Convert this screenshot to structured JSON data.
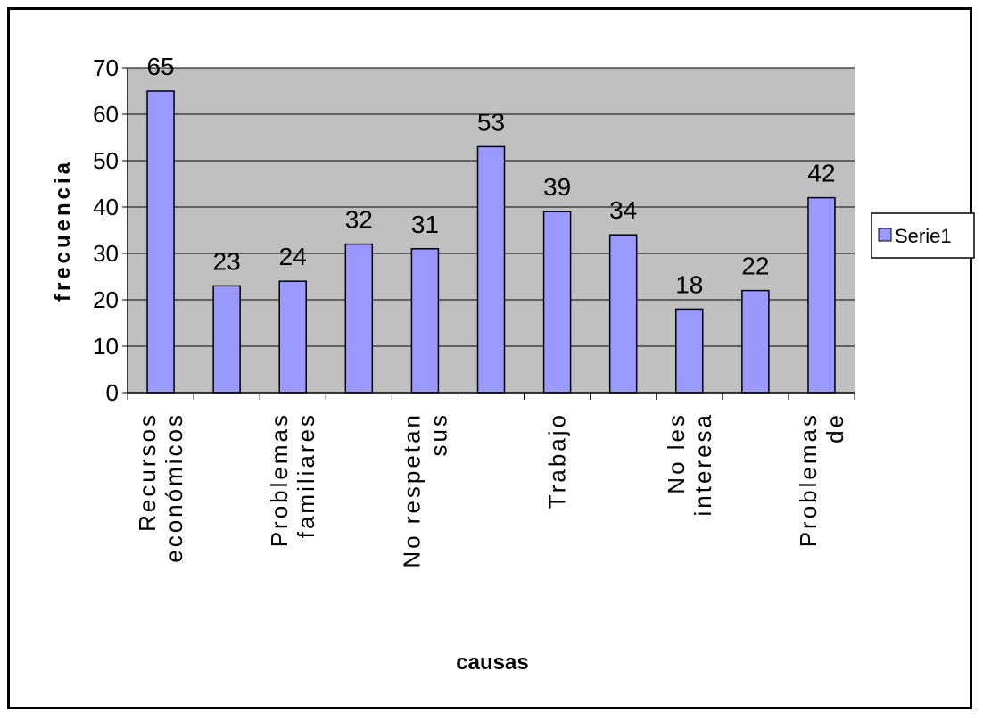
{
  "chart_data": {
    "type": "bar",
    "title": "",
    "xlabel": "causas",
    "ylabel": "frecuencia",
    "ylim": [
      0,
      70
    ],
    "yticks": [
      0,
      10,
      20,
      30,
      40,
      50,
      60,
      70
    ],
    "grid": true,
    "legend_position": "right",
    "categories": [
      [
        "Recursos",
        "económicos"
      ],
      [],
      [
        "Problemas",
        "familiares"
      ],
      [],
      [
        "No respetan",
        "sus"
      ],
      [],
      [
        "Trabajo"
      ],
      [],
      [
        "No les",
        "interesa"
      ],
      [],
      [
        "Problemas",
        "de"
      ]
    ],
    "series": [
      {
        "name": "Serie1",
        "values": [
          65,
          23,
          24,
          32,
          31,
          53,
          39,
          34,
          18,
          22,
          42
        ],
        "color": "#9999ff"
      }
    ],
    "plot_background": "#c0c0c0"
  }
}
